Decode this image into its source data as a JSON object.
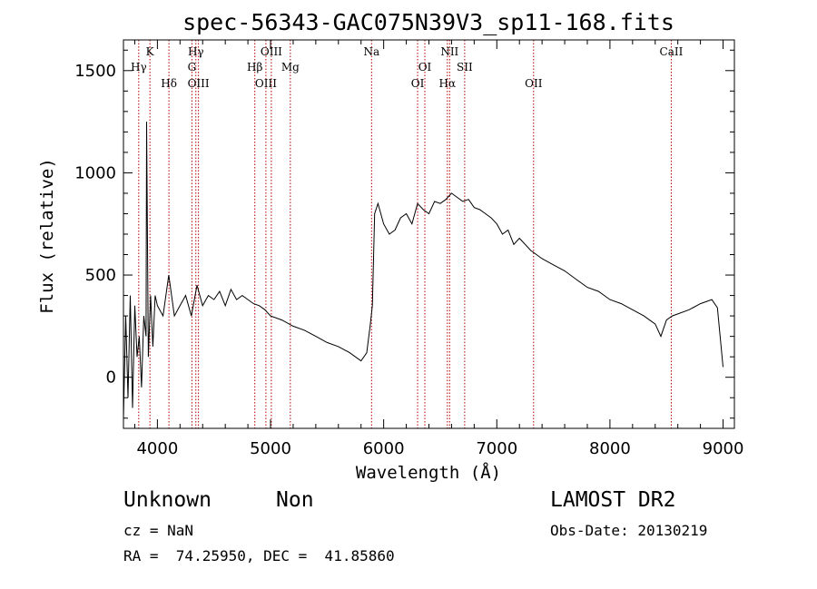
{
  "chart_data": {
    "type": "line",
    "title": "spec-56343-GAC075N39V3_sp11-168.fits",
    "xlabel": "Wavelength (Å)",
    "ylabel": "Flux (relative)",
    "xlim": [
      3700,
      9100
    ],
    "ylim": [
      -250,
      1650
    ],
    "xticks": [
      4000,
      5000,
      6000,
      7000,
      8000,
      9000
    ],
    "yticks": [
      0,
      500,
      1000,
      1500
    ],
    "grid": false,
    "series": [
      {
        "x": [
          3700,
          3720,
          3740,
          3760,
          3780,
          3800,
          3820,
          3840,
          3860,
          3880,
          3900,
          3905,
          3920,
          3940,
          3960,
          3980,
          4000,
          4050,
          4100,
          4150,
          4200,
          4250,
          4300,
          4350,
          4400,
          4450,
          4500,
          4550,
          4600,
          4650,
          4700,
          4750,
          4800,
          4850,
          4900,
          4950,
          5000,
          5100,
          5200,
          5300,
          5400,
          5500,
          5600,
          5700,
          5800,
          5850,
          5880,
          5900,
          5920,
          5950,
          6000,
          6050,
          6100,
          6150,
          6200,
          6250,
          6300,
          6350,
          6400,
          6450,
          6500,
          6550,
          6600,
          6650,
          6700,
          6750,
          6800,
          6850,
          6900,
          6950,
          7000,
          7050,
          7100,
          7150,
          7200,
          7300,
          7400,
          7500,
          7600,
          7700,
          7800,
          7900,
          8000,
          8100,
          8200,
          8300,
          8400,
          8450,
          8500,
          8550,
          8600,
          8700,
          8800,
          8900,
          8950,
          9000
        ],
        "y": [
          -200,
          300,
          -100,
          400,
          -150,
          350,
          100,
          200,
          -50,
          300,
          200,
          1250,
          100,
          400,
          150,
          400,
          350,
          300,
          500,
          300,
          350,
          400,
          300,
          450,
          350,
          400,
          380,
          420,
          350,
          430,
          380,
          400,
          380,
          360,
          350,
          330,
          300,
          280,
          250,
          230,
          200,
          170,
          150,
          120,
          80,
          120,
          250,
          350,
          800,
          850,
          750,
          700,
          720,
          780,
          800,
          750,
          850,
          820,
          800,
          860,
          850,
          870,
          900,
          880,
          860,
          870,
          830,
          820,
          800,
          780,
          750,
          700,
          720,
          650,
          680,
          620,
          580,
          550,
          520,
          480,
          440,
          420,
          380,
          360,
          330,
          300,
          260,
          200,
          280,
          300,
          310,
          330,
          360,
          380,
          340,
          50
        ]
      }
    ],
    "reference_lines": [
      {
        "label": "Hγ",
        "x": 3835,
        "row": 2
      },
      {
        "label": "K",
        "x": 3934,
        "row": 1
      },
      {
        "label": "Hδ",
        "x": 4102,
        "row": 3
      },
      {
        "label": "Hγ",
        "x": 4340,
        "row": 1
      },
      {
        "label": "G",
        "x": 4305,
        "row": 2
      },
      {
        "label": "OIII",
        "x": 4363,
        "row": 3
      },
      {
        "label": "OIII",
        "x": 5007,
        "row": 1
      },
      {
        "label": "Hβ",
        "x": 4861,
        "row": 2
      },
      {
        "label": "OIII",
        "x": 4959,
        "row": 3
      },
      {
        "label": "Mg",
        "x": 5175,
        "row": 2
      },
      {
        "label": "Na",
        "x": 5893,
        "row": 1
      },
      {
        "label": "OI",
        "x": 6364,
        "row": 2
      },
      {
        "label": "OI",
        "x": 6300,
        "row": 3
      },
      {
        "label": "NII",
        "x": 6583,
        "row": 1
      },
      {
        "label": "Hα",
        "x": 6563,
        "row": 3
      },
      {
        "label": "SII",
        "x": 6716,
        "row": 2
      },
      {
        "label": "OII",
        "x": 7325,
        "row": 3
      },
      {
        "label": "CaII",
        "x": 8542,
        "row": 1
      }
    ],
    "colors": {
      "spectrum": "#000000",
      "reference_line": "#b40000",
      "axes": "#000000"
    }
  },
  "footer": {
    "class_text": "Unknown",
    "subclass_text": "Non",
    "survey_text": "LAMOST DR2",
    "cz_text": "cz = NaN",
    "obs_date_text": "Obs-Date: 20130219",
    "coords_text": "RA =  74.25950, DEC =  41.85860"
  }
}
